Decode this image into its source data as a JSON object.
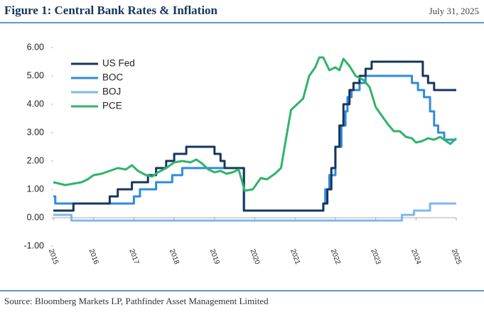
{
  "chart_data": {
    "type": "line",
    "title": "Figure 1: Central Bank Rates & Inflation",
    "date": "July 31, 2025",
    "source": "Source: Bloomberg Markets LP, Pathfinder Asset Management Limited",
    "xlim": [
      2015,
      2025
    ],
    "xticks": [
      2015,
      2016,
      2017,
      2018,
      2019,
      2020,
      2021,
      2022,
      2023,
      2024,
      2025
    ],
    "ylim": [
      -1,
      6
    ],
    "yticks": [
      {
        "value": 6,
        "label": "6.00"
      },
      {
        "value": 5,
        "label": "5.00"
      },
      {
        "value": 4,
        "label": "4.00"
      },
      {
        "value": 3,
        "label": "3.00"
      },
      {
        "value": 2,
        "label": "2.00"
      },
      {
        "value": 1,
        "label": "1.00"
      },
      {
        "value": 0,
        "label": "0.00"
      },
      {
        "value": -1,
        "label": "-1.00"
      }
    ],
    "legend": "top-left",
    "series": [
      {
        "name": "US Fed",
        "color": "#16365c",
        "x": [
          2015,
          2015.5,
          2015.5,
          2016.4,
          2016.4,
          2016.6,
          2016.6,
          2016.95,
          2016.95,
          2017.35,
          2017.35,
          2017.55,
          2017.55,
          2017.8,
          2017.8,
          2018.0,
          2018.0,
          2018.3,
          2018.3,
          2019.0,
          2019.0,
          2019.15,
          2019.15,
          2019.25,
          2019.25,
          2019.73,
          2019.73,
          2021.7,
          2021.7,
          2021.8,
          2021.8,
          2021.9,
          2021.9,
          2022.0,
          2022.0,
          2022.1,
          2022.1,
          2022.2,
          2022.2,
          2022.35,
          2022.35,
          2022.45,
          2022.45,
          2022.6,
          2022.6,
          2022.75,
          2022.75,
          2022.9,
          2022.9,
          2024.17,
          2024.17,
          2024.3,
          2024.3,
          2024.45,
          2024.45,
          2025
        ],
        "values": [
          0.25,
          0.25,
          0.5,
          0.5,
          0.75,
          0.75,
          1.0,
          1.0,
          1.25,
          1.25,
          1.5,
          1.5,
          1.75,
          1.75,
          2.0,
          2.0,
          2.25,
          2.25,
          2.5,
          2.5,
          2.25,
          2.25,
          2.0,
          2.0,
          1.75,
          1.75,
          0.25,
          0.25,
          0.5,
          0.5,
          1.0,
          1.0,
          1.75,
          1.75,
          2.5,
          2.5,
          3.25,
          3.25,
          4.0,
          4.0,
          4.5,
          4.5,
          4.75,
          4.75,
          5.0,
          5.0,
          5.25,
          5.25,
          5.5,
          5.5,
          5.0,
          5.0,
          4.75,
          4.75,
          4.5,
          4.5
        ]
      },
      {
        "name": "BOC",
        "color": "#2e8bde",
        "x": [
          2015,
          2015.05,
          2015.05,
          2017.0,
          2017.0,
          2017.15,
          2017.15,
          2017.55,
          2017.55,
          2017.95,
          2017.95,
          2018.2,
          2018.2,
          2019.73,
          2019.73,
          2021.7,
          2021.7,
          2021.75,
          2021.75,
          2021.85,
          2021.85,
          2022.0,
          2022.0,
          2022.15,
          2022.15,
          2022.25,
          2022.25,
          2022.3,
          2022.3,
          2022.4,
          2022.4,
          2022.6,
          2022.6,
          2022.75,
          2022.75,
          2023.9,
          2023.9,
          2024.05,
          2024.05,
          2024.2,
          2024.2,
          2024.35,
          2024.35,
          2024.45,
          2024.45,
          2024.55,
          2024.55,
          2024.7,
          2024.7,
          2025
        ],
        "values": [
          0.75,
          0.75,
          0.5,
          0.5,
          0.75,
          0.75,
          1.0,
          1.0,
          1.25,
          1.25,
          1.5,
          1.5,
          1.75,
          1.75,
          0.25,
          0.25,
          0.5,
          0.5,
          1.0,
          1.0,
          1.5,
          1.5,
          2.5,
          2.5,
          3.25,
          3.25,
          3.75,
          3.75,
          4.25,
          4.25,
          4.5,
          4.5,
          4.75,
          4.75,
          5.0,
          5.0,
          4.75,
          4.75,
          4.5,
          4.5,
          4.25,
          4.25,
          3.75,
          3.75,
          3.25,
          3.25,
          3.0,
          3.0,
          2.75,
          2.75
        ]
      },
      {
        "name": "BOJ",
        "color": "#7db8ec",
        "x": [
          2015,
          2015.45,
          2015.45,
          2023.65,
          2023.65,
          2023.95,
          2023.95,
          2024.35,
          2024.35,
          2025
        ],
        "values": [
          0.1,
          0.1,
          -0.1,
          -0.1,
          0.1,
          0.1,
          0.25,
          0.25,
          0.5,
          0.5
        ]
      },
      {
        "name": "PCE",
        "color": "#2fb469",
        "x": [
          2015,
          2015.15,
          2015.3,
          2015.5,
          2015.7,
          2015.85,
          2016.0,
          2016.2,
          2016.4,
          2016.6,
          2016.8,
          2016.95,
          2017.1,
          2017.3,
          2017.45,
          2017.6,
          2017.8,
          2018.0,
          2018.2,
          2018.4,
          2018.55,
          2018.7,
          2018.85,
          2019.0,
          2019.15,
          2019.3,
          2019.45,
          2019.6,
          2019.75,
          2019.95,
          2020.15,
          2020.3,
          2020.5,
          2020.65,
          2020.8,
          2020.9,
          2021.05,
          2021.2,
          2021.35,
          2021.5,
          2021.6,
          2021.7,
          2021.85,
          2022.0,
          2022.1,
          2022.2,
          2022.35,
          2022.5,
          2022.7,
          2022.85,
          2023.0,
          2023.15,
          2023.3,
          2023.45,
          2023.6,
          2023.75,
          2023.9,
          2024.0,
          2024.15,
          2024.3,
          2024.45,
          2024.6,
          2024.75,
          2024.85,
          2025
        ],
        "values": [
          1.25,
          1.2,
          1.15,
          1.2,
          1.25,
          1.35,
          1.5,
          1.55,
          1.65,
          1.75,
          1.7,
          1.85,
          1.65,
          1.5,
          1.45,
          1.6,
          1.75,
          1.95,
          2.0,
          1.95,
          2.05,
          1.9,
          1.7,
          1.6,
          1.65,
          1.55,
          1.6,
          1.7,
          0.95,
          1.0,
          1.4,
          1.35,
          1.55,
          1.75,
          3.0,
          3.8,
          4.0,
          4.2,
          5.0,
          5.3,
          5.65,
          5.65,
          5.2,
          5.3,
          5.2,
          5.6,
          5.35,
          5.0,
          4.85,
          4.6,
          3.9,
          3.6,
          3.3,
          3.05,
          3.05,
          2.85,
          2.8,
          2.65,
          2.7,
          2.8,
          2.75,
          2.85,
          2.7,
          2.6,
          2.8
        ]
      }
    ]
  }
}
